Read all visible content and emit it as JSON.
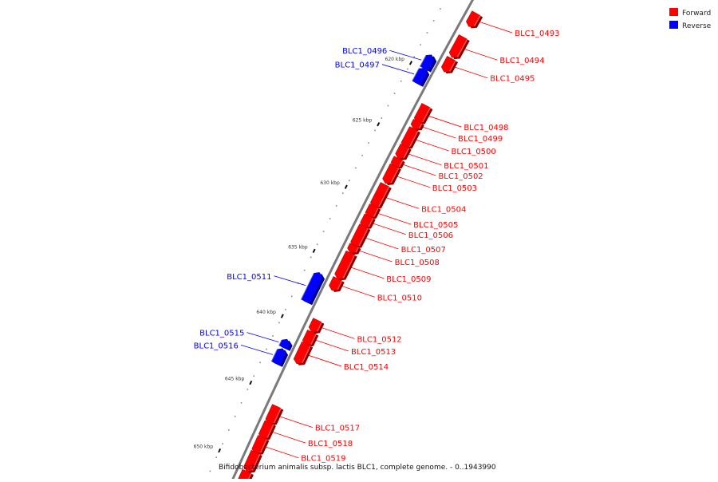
{
  "colors": {
    "forward": "#ff0000",
    "reverse": "#0000ff",
    "backbone": "#7a7a7a"
  },
  "legend": [
    {
      "label": "Forward",
      "strand": "forward"
    },
    {
      "label": "Reverse",
      "strand": "reverse"
    }
  ],
  "caption": "Bifidobacterium animalis subsp. lactis BLC1, complete genome. - 0..1943990",
  "ticks": [
    {
      "kbp": 620,
      "label": "620 kbp"
    },
    {
      "kbp": 625,
      "label": "625 kbp"
    },
    {
      "kbp": 630,
      "label": "630 kbp"
    },
    {
      "kbp": 635,
      "label": "635 kbp"
    },
    {
      "kbp": 640,
      "label": "640 kbp"
    },
    {
      "kbp": 645,
      "label": "645 kbp"
    },
    {
      "kbp": 650,
      "label": "650 kbp"
    }
  ],
  "genes": [
    {
      "name": "BLC1_0493",
      "strand": "forward",
      "start": 614.5,
      "end": 615.4
    },
    {
      "name": "BLC1_0494",
      "strand": "forward",
      "start": 616.5,
      "end": 618.0
    },
    {
      "name": "BLC1_0495",
      "strand": "forward",
      "start": 618.3,
      "end": 619.2
    },
    {
      "name": "BLC1_0496",
      "strand": "reverse",
      "start": 619.0,
      "end": 619.9
    },
    {
      "name": "BLC1_0497",
      "strand": "reverse",
      "start": 620.1,
      "end": 621.1
    },
    {
      "name": "BLC1_0498",
      "strand": "forward",
      "start": 622.2,
      "end": 623.4
    },
    {
      "name": "BLC1_0499",
      "strand": "forward",
      "start": 623.5,
      "end": 623.9
    },
    {
      "name": "BLC1_0500",
      "strand": "forward",
      "start": 624.1,
      "end": 625.4
    },
    {
      "name": "BLC1_0501",
      "strand": "forward",
      "start": 625.5,
      "end": 626.3
    },
    {
      "name": "BLC1_0502",
      "strand": "forward",
      "start": 626.5,
      "end": 627.0
    },
    {
      "name": "BLC1_0503",
      "strand": "forward",
      "start": 627.1,
      "end": 628.3
    },
    {
      "name": "BLC1_0504",
      "strand": "forward",
      "start": 628.6,
      "end": 630.2
    },
    {
      "name": "BLC1_0505",
      "strand": "forward",
      "start": 630.3,
      "end": 631.0
    },
    {
      "name": "BLC1_0506",
      "strand": "forward",
      "start": 631.1,
      "end": 631.8
    },
    {
      "name": "BLC1_0507",
      "strand": "forward",
      "start": 631.9,
      "end": 633.3
    },
    {
      "name": "BLC1_0508",
      "strand": "forward",
      "start": 633.4,
      "end": 633.8
    },
    {
      "name": "BLC1_0509",
      "strand": "forward",
      "start": 634.0,
      "end": 635.8
    },
    {
      "name": "BLC1_0510",
      "strand": "forward",
      "start": 636.0,
      "end": 636.7
    },
    {
      "name": "BLC1_0511",
      "strand": "reverse",
      "start": 636.4,
      "end": 638.4
    },
    {
      "name": "BLC1_0512",
      "strand": "forward",
      "start": 639.2,
      "end": 639.9
    },
    {
      "name": "BLC1_0513",
      "strand": "forward",
      "start": 640.1,
      "end": 640.9
    },
    {
      "name": "BLC1_0514",
      "strand": "forward",
      "start": 641.0,
      "end": 642.3
    },
    {
      "name": "BLC1_0515",
      "strand": "reverse",
      "start": 641.5,
      "end": 641.9
    },
    {
      "name": "BLC1_0516",
      "strand": "reverse",
      "start": 642.2,
      "end": 643.1
    },
    {
      "name": "BLC1_0517",
      "strand": "forward",
      "start": 645.7,
      "end": 646.8
    },
    {
      "name": "BLC1_0518",
      "strand": "forward",
      "start": 646.9,
      "end": 647.9
    },
    {
      "name": "BLC1_0519",
      "strand": "forward",
      "start": 648.0,
      "end": 649.0
    },
    {
      "name": "",
      "strand": "forward",
      "start": 649.1,
      "end": 650.3
    },
    {
      "name": "",
      "strand": "forward",
      "start": 650.5,
      "end": 651.3
    }
  ]
}
